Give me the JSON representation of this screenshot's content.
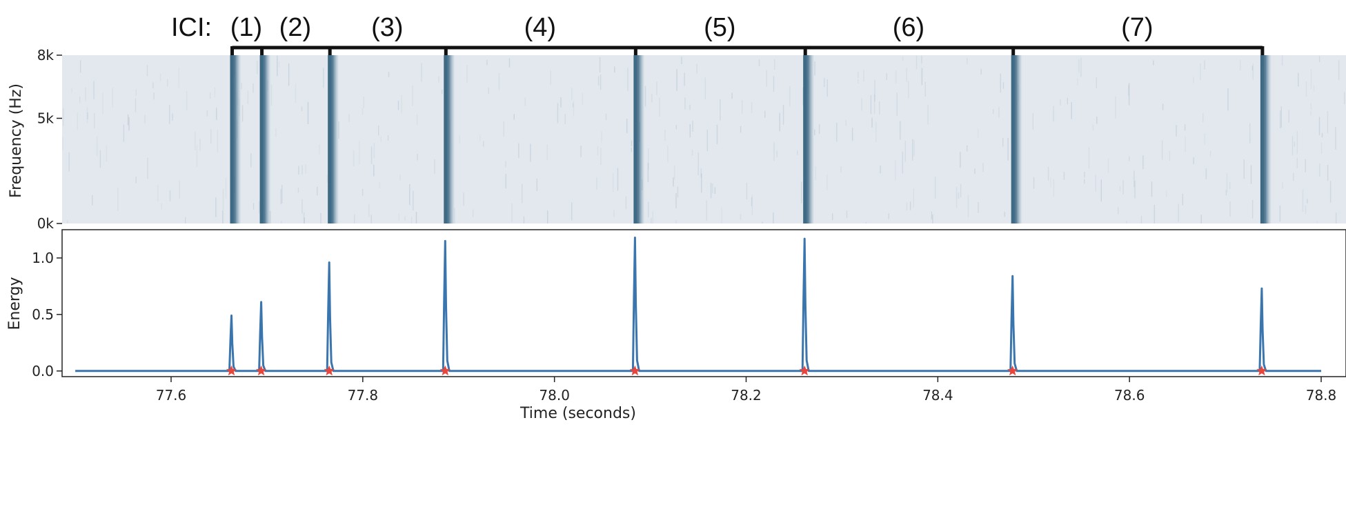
{
  "chart_data": [
    {
      "type": "heatmap",
      "ylabel": "Frequency (Hz)",
      "y_ticks": [
        {
          "value": 8000,
          "label": "8k"
        },
        {
          "value": 5000,
          "label": "5k"
        },
        {
          "value": 0,
          "label": "0k"
        }
      ],
      "ylim": [
        0,
        8000
      ],
      "xlim": [
        77.44,
        78.84
      ],
      "click_times": [
        77.663,
        77.694,
        77.765,
        77.886,
        78.084,
        78.261,
        78.478,
        78.738
      ],
      "colors": {
        "background": "#e2e8ee",
        "click": "#3f6a86"
      },
      "ici_label": "ICI:",
      "ici_brackets": [
        {
          "label": "(1)",
          "start": 77.663,
          "end": 77.694
        },
        {
          "label": "(2)",
          "start": 77.694,
          "end": 77.765
        },
        {
          "label": "(3)",
          "start": 77.765,
          "end": 77.886
        },
        {
          "label": "(4)",
          "start": 77.886,
          "end": 78.084
        },
        {
          "label": "(5)",
          "start": 78.084,
          "end": 78.261
        },
        {
          "label": "(6)",
          "start": 78.261,
          "end": 78.478
        },
        {
          "label": "(7)",
          "start": 78.478,
          "end": 78.738
        }
      ]
    },
    {
      "type": "line",
      "xlabel": "Time (seconds)",
      "ylabel": "Energy",
      "xlim": [
        77.44,
        78.84
      ],
      "ylim": [
        -0.05,
        1.25
      ],
      "x_ticks": [
        77.6,
        77.8,
        78.0,
        78.2,
        78.4,
        78.6,
        78.8
      ],
      "x_tick_labels": [
        "77.6",
        "77.8",
        "78.0",
        "78.2",
        "78.4",
        "78.6",
        "78.8"
      ],
      "y_ticks": [
        0.0,
        0.5,
        1.0
      ],
      "y_tick_labels": [
        "0.0",
        "0.5",
        "1.0"
      ],
      "series": [
        {
          "baseline": 0.0,
          "x_range": [
            77.5,
            78.8
          ],
          "peaks": [
            {
              "x": 77.663,
              "y": 0.49
            },
            {
              "x": 77.694,
              "y": 0.61
            },
            {
              "x": 77.765,
              "y": 0.96
            },
            {
              "x": 77.886,
              "y": 1.15
            },
            {
              "x": 78.084,
              "y": 1.18
            },
            {
              "x": 78.261,
              "y": 1.17
            },
            {
              "x": 78.478,
              "y": 0.84
            },
            {
              "x": 78.738,
              "y": 0.73
            }
          ],
          "color": "#3a75ae"
        }
      ],
      "markers": {
        "x": [
          77.663,
          77.694,
          77.765,
          77.886,
          78.084,
          78.261,
          78.478,
          78.738
        ],
        "y": 0.0,
        "color": "#e8453c",
        "shape": "star"
      }
    }
  ]
}
